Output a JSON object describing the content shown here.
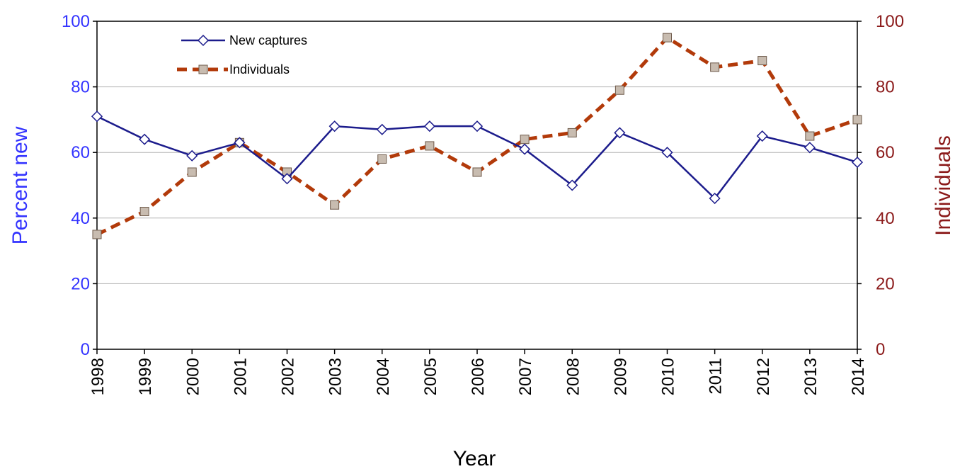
{
  "chart_data": {
    "type": "line",
    "title": "",
    "xlabel": "Year",
    "ylabel": "Percent new",
    "ylabel_right": "Individuals",
    "ylim": [
      0,
      100
    ],
    "ylim_right": [
      0,
      100
    ],
    "yticks": [
      "0",
      "20",
      "40",
      "60",
      "80",
      "100"
    ],
    "yticks_right": [
      "0",
      "20",
      "40",
      "60",
      "80",
      "100"
    ],
    "categories": [
      "1998",
      "1999",
      "2000",
      "2001",
      "2002",
      "2003",
      "2004",
      "2005",
      "2006",
      "2007",
      "2008",
      "2009",
      "2010",
      "2011",
      "2012",
      "2013",
      "2014"
    ],
    "grid": true,
    "legend_position": "top-left",
    "series": [
      {
        "name": "New captures",
        "axis": "left",
        "color": "#1c1c8c",
        "line_style": "solid",
        "marker": "diamond",
        "values": [
          71,
          64,
          59,
          63,
          52,
          68,
          67,
          68,
          68,
          61,
          50,
          66,
          60,
          46,
          65,
          61.5,
          57
        ]
      },
      {
        "name": "Individuals",
        "axis": "right",
        "color": "#b23a0a",
        "line_style": "dashed",
        "marker": "square",
        "values": [
          35,
          42,
          54,
          63,
          54,
          44,
          58,
          62,
          54,
          64,
          66,
          79,
          95,
          86,
          88,
          65,
          70
        ]
      }
    ],
    "colors": {
      "left_axis": "#3333ff",
      "right_axis": "#8b1a1a",
      "grid": "#b3b3b3",
      "marker_fill_square": "#c8bcb0",
      "marker_fill_diamond": "#ffffff"
    }
  }
}
